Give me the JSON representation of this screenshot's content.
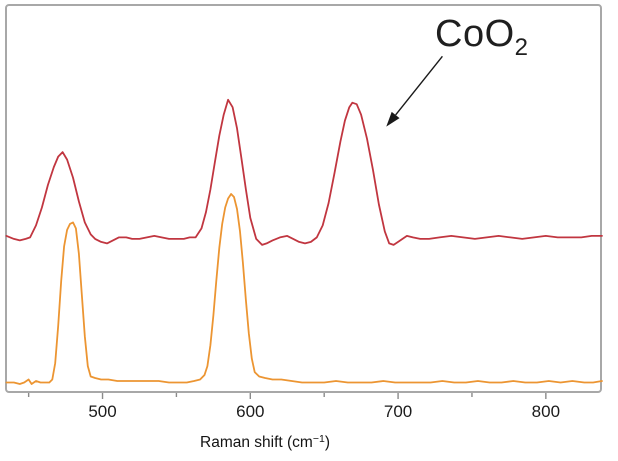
{
  "figure": {
    "xlabel_pre": "Raman shift (cm",
    "xlabel_sup": "−1",
    "xlabel_post": ")"
  },
  "chart_data": {
    "type": "line",
    "title": "",
    "xlabel": "Raman shift (cm⁻¹)",
    "ylabel": "",
    "xlim": [
      434,
      838
    ],
    "ylim": [
      0,
      260
    ],
    "xticks_major": [
      500,
      600,
      700,
      800
    ],
    "xticks_minor": [
      450,
      550,
      650,
      750
    ],
    "grid": false,
    "legend": "none",
    "axis_color": "#a8a8a8",
    "tick_color": "#8a8a8a",
    "annotation": {
      "label": "CoO",
      "label_subscript": "2",
      "arrow_from": [
        730,
        225
      ],
      "arrow_to": [
        692,
        178
      ],
      "arrow_color": "#1a1a1a"
    },
    "series": [
      {
        "name": "red trace (upper spectrum, CoO2 peak at ~669 cm⁻¹)",
        "color": "#c13640",
        "peaks_cm1": [
          473,
          585,
          669
        ],
        "points": [
          [
            435,
            105
          ],
          [
            440,
            103
          ],
          [
            444,
            102
          ],
          [
            448,
            103
          ],
          [
            451,
            104
          ],
          [
            455,
            112
          ],
          [
            459,
            124
          ],
          [
            463,
            139
          ],
          [
            467,
            151
          ],
          [
            470,
            158
          ],
          [
            473,
            161
          ],
          [
            476,
            156
          ],
          [
            480,
            144
          ],
          [
            484,
            128
          ],
          [
            488,
            114
          ],
          [
            492,
            106
          ],
          [
            495,
            103
          ],
          [
            499,
            101
          ],
          [
            503,
            100
          ],
          [
            507,
            102
          ],
          [
            511,
            104
          ],
          [
            516,
            104
          ],
          [
            520,
            103
          ],
          [
            525,
            103
          ],
          [
            530,
            104
          ],
          [
            535,
            105
          ],
          [
            540,
            104
          ],
          [
            545,
            103
          ],
          [
            550,
            103
          ],
          [
            555,
            103
          ],
          [
            559,
            104
          ],
          [
            563,
            104
          ],
          [
            567,
            110
          ],
          [
            570,
            121
          ],
          [
            573,
            136
          ],
          [
            576,
            154
          ],
          [
            579,
            172
          ],
          [
            582,
            186
          ],
          [
            585,
            196
          ],
          [
            588,
            191
          ],
          [
            591,
            177
          ],
          [
            594,
            157
          ],
          [
            597,
            136
          ],
          [
            600,
            117
          ],
          [
            604,
            103
          ],
          [
            608,
            99
          ],
          [
            611,
            100
          ],
          [
            615,
            102
          ],
          [
            620,
            104
          ],
          [
            625,
            105
          ],
          [
            629,
            103
          ],
          [
            633,
            101
          ],
          [
            637,
            100
          ],
          [
            641,
            101
          ],
          [
            645,
            104
          ],
          [
            649,
            112
          ],
          [
            653,
            127
          ],
          [
            657,
            147
          ],
          [
            661,
            168
          ],
          [
            664,
            182
          ],
          [
            667,
            191
          ],
          [
            669,
            194
          ],
          [
            672,
            193
          ],
          [
            675,
            186
          ],
          [
            679,
            170
          ],
          [
            683,
            149
          ],
          [
            687,
            126
          ],
          [
            691,
            108
          ],
          [
            694,
            100
          ],
          [
            697,
            99
          ],
          [
            700,
            101
          ],
          [
            703,
            103
          ],
          [
            706,
            105
          ],
          [
            710,
            104
          ],
          [
            715,
            103
          ],
          [
            721,
            103
          ],
          [
            728,
            104
          ],
          [
            736,
            105
          ],
          [
            744,
            104
          ],
          [
            752,
            103
          ],
          [
            760,
            104
          ],
          [
            768,
            105
          ],
          [
            776,
            104
          ],
          [
            784,
            103
          ],
          [
            792,
            104
          ],
          [
            800,
            105
          ],
          [
            808,
            104
          ],
          [
            816,
            104
          ],
          [
            824,
            104
          ],
          [
            831,
            105
          ],
          [
            838,
            105
          ]
        ]
      },
      {
        "name": "orange trace (lower spectrum, peaks at ~479 and ~587 cm⁻¹)",
        "color": "#ec9532",
        "peaks_cm1": [
          479,
          587
        ],
        "points": [
          [
            435,
            7
          ],
          [
            440,
            7
          ],
          [
            444,
            6
          ],
          [
            447,
            7
          ],
          [
            450,
            9
          ],
          [
            452,
            6
          ],
          [
            455,
            8
          ],
          [
            458,
            7
          ],
          [
            461,
            7
          ],
          [
            464,
            7
          ],
          [
            466,
            9
          ],
          [
            468,
            20
          ],
          [
            470,
            45
          ],
          [
            472,
            75
          ],
          [
            474,
            98
          ],
          [
            476,
            109
          ],
          [
            478,
            113
          ],
          [
            480,
            114
          ],
          [
            482,
            110
          ],
          [
            484,
            93
          ],
          [
            486,
            66
          ],
          [
            488,
            38
          ],
          [
            490,
            18
          ],
          [
            492,
            11
          ],
          [
            495,
            10
          ],
          [
            499,
            9
          ],
          [
            504,
            9
          ],
          [
            510,
            8
          ],
          [
            517,
            8
          ],
          [
            524,
            8
          ],
          [
            531,
            8
          ],
          [
            538,
            8
          ],
          [
            545,
            7
          ],
          [
            551,
            7
          ],
          [
            557,
            7
          ],
          [
            562,
            8
          ],
          [
            566,
            9
          ],
          [
            569,
            12
          ],
          [
            571,
            18
          ],
          [
            573,
            32
          ],
          [
            575,
            52
          ],
          [
            577,
            75
          ],
          [
            579,
            97
          ],
          [
            581,
            113
          ],
          [
            583,
            124
          ],
          [
            585,
            130
          ],
          [
            587,
            133
          ],
          [
            589,
            131
          ],
          [
            591,
            123
          ],
          [
            593,
            108
          ],
          [
            595,
            87
          ],
          [
            597,
            62
          ],
          [
            599,
            40
          ],
          [
            601,
            23
          ],
          [
            603,
            14
          ],
          [
            606,
            11
          ],
          [
            610,
            10
          ],
          [
            615,
            9
          ],
          [
            621,
            9
          ],
          [
            628,
            8
          ],
          [
            635,
            7
          ],
          [
            642,
            7
          ],
          [
            650,
            7
          ],
          [
            658,
            8
          ],
          [
            666,
            7
          ],
          [
            674,
            7
          ],
          [
            682,
            7
          ],
          [
            690,
            8
          ],
          [
            698,
            7
          ],
          [
            706,
            7
          ],
          [
            714,
            7
          ],
          [
            722,
            7
          ],
          [
            730,
            8
          ],
          [
            738,
            7
          ],
          [
            746,
            7
          ],
          [
            754,
            8
          ],
          [
            762,
            7
          ],
          [
            770,
            7
          ],
          [
            778,
            8
          ],
          [
            786,
            7
          ],
          [
            794,
            7
          ],
          [
            802,
            8
          ],
          [
            810,
            7
          ],
          [
            818,
            8
          ],
          [
            826,
            7
          ],
          [
            832,
            7
          ],
          [
            838,
            8
          ]
        ]
      }
    ]
  }
}
